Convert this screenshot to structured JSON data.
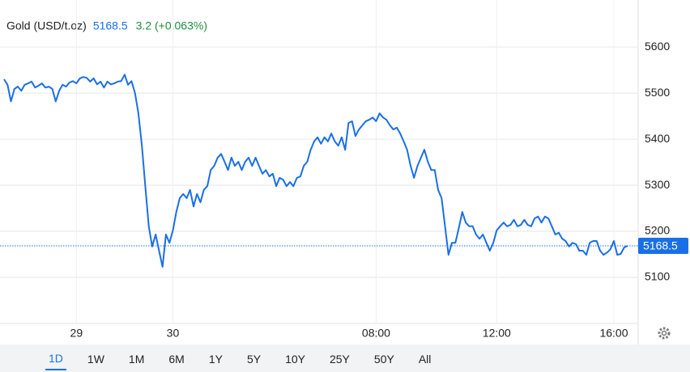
{
  "chart_data": {
    "type": "line",
    "title": "Gold (USD/t.oz)",
    "price": 5168.5,
    "change": "3.2 (+0.063%)",
    "series": [
      {
        "name": "Gold",
        "color": "#1a6fe6",
        "values": [
          5530,
          5518,
          5482,
          5509,
          5514,
          5505,
          5518,
          5521,
          5525,
          5512,
          5516,
          5521,
          5512,
          5514,
          5509,
          5482,
          5505,
          5518,
          5514,
          5523,
          5526,
          5521,
          5532,
          5535,
          5533,
          5525,
          5532,
          5519,
          5525,
          5512,
          5525,
          5519,
          5521,
          5525,
          5526,
          5540,
          5518,
          5526,
          5500,
          5456,
          5386,
          5298,
          5211,
          5167,
          5193,
          5158,
          5123,
          5193,
          5175,
          5202,
          5242,
          5272,
          5281,
          5272,
          5290,
          5254,
          5281,
          5263,
          5290,
          5298,
          5333,
          5342,
          5360,
          5368,
          5351,
          5333,
          5360,
          5342,
          5351,
          5333,
          5351,
          5360,
          5342,
          5360,
          5342,
          5325,
          5333,
          5319,
          5325,
          5298,
          5316,
          5312,
          5298,
          5307,
          5298,
          5316,
          5319,
          5342,
          5351,
          5377,
          5395,
          5404,
          5390,
          5404,
          5395,
          5412,
          5395,
          5386,
          5404,
          5377,
          5435,
          5439,
          5407,
          5421,
          5430,
          5439,
          5442,
          5447,
          5439,
          5456,
          5447,
          5442,
          5430,
          5421,
          5425,
          5412,
          5395,
          5377,
          5342,
          5316,
          5342,
          5360,
          5377,
          5351,
          5333,
          5333,
          5290,
          5272,
          5211,
          5149,
          5175,
          5175,
          5207,
          5242,
          5219,
          5211,
          5211,
          5193,
          5184,
          5193,
          5175,
          5158,
          5175,
          5202,
          5211,
          5219,
          5211,
          5214,
          5225,
          5211,
          5214,
          5225,
          5214,
          5211,
          5228,
          5232,
          5219,
          5232,
          5228,
          5211,
          5193,
          5197,
          5184,
          5179,
          5167,
          5175,
          5172,
          5158,
          5158,
          5149,
          5175,
          5179,
          5179,
          5158,
          5149,
          5154,
          5161,
          5179,
          5149,
          5151,
          5165,
          5168.5
        ]
      }
    ],
    "ylim": [
      5000,
      5702
    ],
    "yticks": [
      5100,
      5200,
      5300,
      5400,
      5500,
      5600
    ],
    "xlim": [
      0,
      181
    ],
    "xticks": [
      {
        "value": 21,
        "label": "29"
      },
      {
        "value": 49,
        "label": "30"
      },
      {
        "value": 108,
        "label": "08:00"
      },
      {
        "value": 143,
        "label": "12:00"
      },
      {
        "value": 177,
        "label": "16:00"
      }
    ],
    "grid": true,
    "ranges": [
      "1D",
      "1W",
      "1M",
      "6M",
      "1Y",
      "5Y",
      "10Y",
      "25Y",
      "50Y",
      "All"
    ],
    "selected_range": 0
  }
}
